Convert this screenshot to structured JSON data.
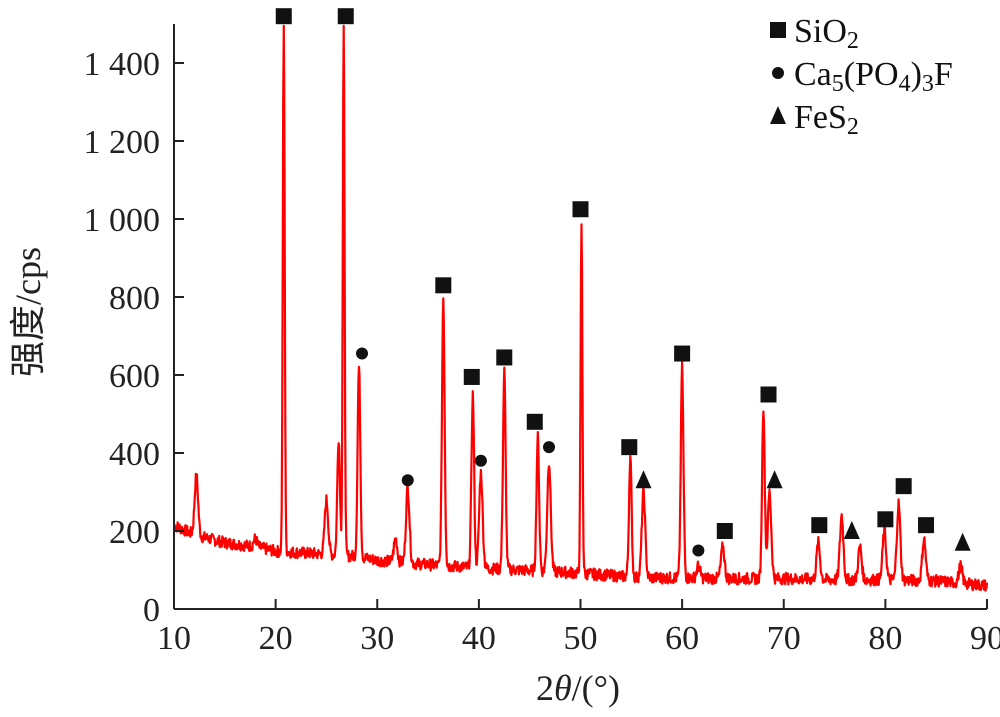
{
  "chart_data": {
    "type": "line",
    "title": "",
    "xlabel": "2θ/(°)",
    "ylabel": "强度/cps",
    "xlim": [
      10,
      90
    ],
    "ylim": [
      0,
      1500
    ],
    "x_ticks": [
      10,
      20,
      30,
      40,
      50,
      60,
      70,
      80,
      90
    ],
    "y_ticks": [
      0,
      200,
      400,
      600,
      800,
      1000,
      1200,
      1400
    ],
    "y_tick_labels": [
      "0",
      "200",
      "400",
      "600",
      "800",
      "1 000",
      "1 200",
      "1 400"
    ],
    "grid": false,
    "legend_position": "top-right",
    "series": [
      {
        "color": "#ff0000",
        "baseline": [
          [
            10,
            215
          ],
          [
            12,
            190
          ],
          [
            15,
            170
          ],
          [
            18,
            160
          ],
          [
            20,
            148
          ],
          [
            22,
            145
          ],
          [
            25,
            140
          ],
          [
            28,
            135
          ],
          [
            30,
            125
          ],
          [
            33,
            118
          ],
          [
            36,
            112
          ],
          [
            40,
            105
          ],
          [
            44,
            100
          ],
          [
            48,
            95
          ],
          [
            52,
            88
          ],
          [
            56,
            80
          ],
          [
            60,
            80
          ],
          [
            65,
            78
          ],
          [
            70,
            78
          ],
          [
            75,
            75
          ],
          [
            80,
            75
          ],
          [
            85,
            72
          ],
          [
            90,
            60
          ]
        ],
        "peaks": [
          {
            "x": 12.2,
            "y": 340
          },
          {
            "x": 18.0,
            "y": 180
          },
          {
            "x": 20.8,
            "y": 1500
          },
          {
            "x": 25.0,
            "y": 280
          },
          {
            "x": 26.2,
            "y": 440
          },
          {
            "x": 26.7,
            "y": 1500
          },
          {
            "x": 28.2,
            "y": 620
          },
          {
            "x": 31.8,
            "y": 180
          },
          {
            "x": 33.0,
            "y": 310
          },
          {
            "x": 36.5,
            "y": 800
          },
          {
            "x": 39.4,
            "y": 550
          },
          {
            "x": 40.2,
            "y": 350
          },
          {
            "x": 42.5,
            "y": 610
          },
          {
            "x": 45.8,
            "y": 440
          },
          {
            "x": 46.9,
            "y": 380
          },
          {
            "x": 50.1,
            "y": 990
          },
          {
            "x": 54.9,
            "y": 390
          },
          {
            "x": 56.2,
            "y": 300
          },
          {
            "x": 60.0,
            "y": 620
          },
          {
            "x": 61.6,
            "y": 110
          },
          {
            "x": 64.0,
            "y": 160
          },
          {
            "x": 68.0,
            "y": 520
          },
          {
            "x": 68.6,
            "y": 300
          },
          {
            "x": 73.4,
            "y": 170
          },
          {
            "x": 75.7,
            "y": 240
          },
          {
            "x": 77.5,
            "y": 160
          },
          {
            "x": 79.9,
            "y": 200
          },
          {
            "x": 81.3,
            "y": 270
          },
          {
            "x": 83.8,
            "y": 180
          },
          {
            "x": 87.4,
            "y": 110
          }
        ]
      }
    ],
    "markers": [
      {
        "phase": "SiO2",
        "x": 20.8,
        "y": 1520
      },
      {
        "phase": "SiO2",
        "x": 26.9,
        "y": 1520
      },
      {
        "phase": "SiO2",
        "x": 36.5,
        "y": 830
      },
      {
        "phase": "SiO2",
        "x": 39.3,
        "y": 595
      },
      {
        "phase": "SiO2",
        "x": 42.5,
        "y": 645
      },
      {
        "phase": "SiO2",
        "x": 45.5,
        "y": 480
      },
      {
        "phase": "SiO2",
        "x": 50.0,
        "y": 1025
      },
      {
        "phase": "SiO2",
        "x": 54.8,
        "y": 415
      },
      {
        "phase": "SiO2",
        "x": 60.0,
        "y": 655
      },
      {
        "phase": "SiO2",
        "x": 64.2,
        "y": 200
      },
      {
        "phase": "SiO2",
        "x": 68.5,
        "y": 550
      },
      {
        "phase": "SiO2",
        "x": 73.5,
        "y": 215
      },
      {
        "phase": "SiO2",
        "x": 80.0,
        "y": 230
      },
      {
        "phase": "SiO2",
        "x": 81.8,
        "y": 315
      },
      {
        "phase": "SiO2",
        "x": 84.0,
        "y": 215
      },
      {
        "phase": "Ca5(PO4)3F",
        "x": 28.5,
        "y": 655
      },
      {
        "phase": "Ca5(PO4)3F",
        "x": 33.0,
        "y": 330
      },
      {
        "phase": "Ca5(PO4)3F",
        "x": 40.2,
        "y": 380
      },
      {
        "phase": "Ca5(PO4)3F",
        "x": 46.9,
        "y": 415
      },
      {
        "phase": "Ca5(PO4)3F",
        "x": 61.6,
        "y": 150
      },
      {
        "phase": "FeS2",
        "x": 56.2,
        "y": 330
      },
      {
        "phase": "FeS2",
        "x": 69.1,
        "y": 330
      },
      {
        "phase": "FeS2",
        "x": 76.7,
        "y": 200
      },
      {
        "phase": "FeS2",
        "x": 87.6,
        "y": 170
      }
    ],
    "legend": [
      {
        "marker": "square",
        "label": "SiO",
        "sub": "2",
        "tail": ""
      },
      {
        "marker": "circle",
        "label": "Ca",
        "parts": [
          [
            "Ca",
            false
          ],
          [
            "5",
            true
          ],
          [
            "(PO",
            false
          ],
          [
            "4",
            true
          ],
          [
            ")",
            false
          ],
          [
            "3",
            true
          ],
          [
            "F",
            false
          ]
        ]
      },
      {
        "marker": "triangle",
        "label": "FeS",
        "sub": "2",
        "tail": ""
      }
    ]
  }
}
